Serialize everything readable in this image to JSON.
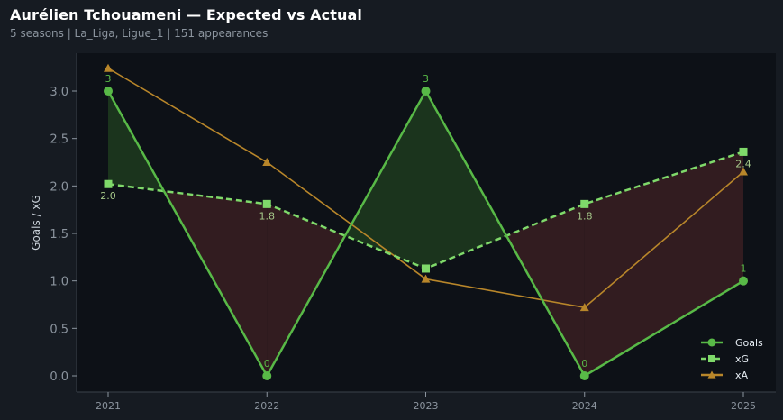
{
  "header": {
    "title": "Aurélien Tchouameni — Expected vs Actual",
    "subtitle": "5 seasons | La_Liga, Ligue_1 | 151 appearances"
  },
  "colors": {
    "goals": "#58b947",
    "xg": "#7fd96a",
    "xa": "#b8862a",
    "over_fill": "#1f3b1f",
    "under_fill": "#3a1f22",
    "plot_bg": "#0d1117",
    "page_bg": "#161b22",
    "text": "#8b949e"
  },
  "chart_data": {
    "type": "line",
    "title": "Aurélien Tchouameni — Expected vs Actual",
    "xlabel": "",
    "ylabel": "Goals / xG",
    "categories": [
      "2021",
      "2022",
      "2023",
      "2024",
      "2025"
    ],
    "ylim": [
      -0.15,
      3.4
    ],
    "yticks": [
      "0.0",
      "0.5",
      "1.0",
      "1.5",
      "2.0",
      "2.5",
      "3.0"
    ],
    "grid": false,
    "legend_position": "bottom-right",
    "series": [
      {
        "name": "Goals",
        "values": [
          3,
          0,
          3,
          0,
          1
        ],
        "labels": [
          "3",
          "0",
          "3",
          "0",
          "1"
        ],
        "marker": "circle",
        "style": "solid"
      },
      {
        "name": "xG",
        "values": [
          2.02,
          1.81,
          1.13,
          1.81,
          2.36
        ],
        "labels": [
          "2.0",
          "1.8",
          "",
          "1.8",
          "2.4"
        ],
        "marker": "square",
        "style": "dashed"
      },
      {
        "name": "xA",
        "values": [
          3.24,
          2.25,
          1.02,
          0.72,
          2.15
        ],
        "marker": "triangle",
        "style": "solid"
      }
    ]
  }
}
